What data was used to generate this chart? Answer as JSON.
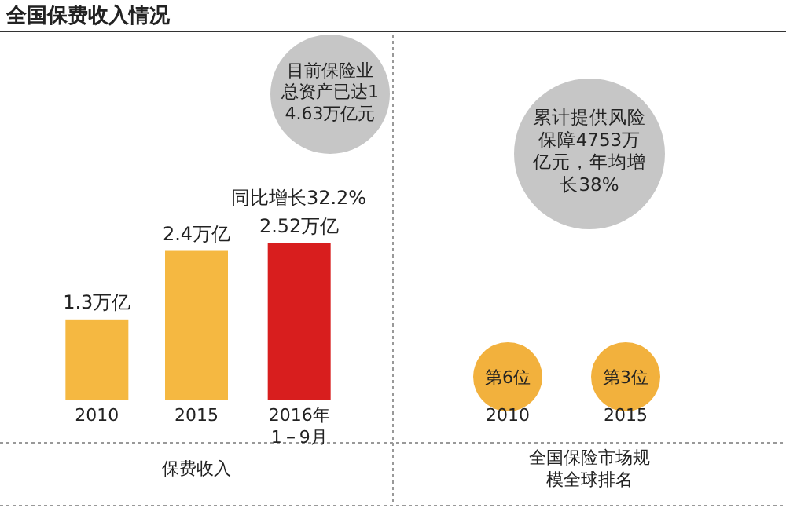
{
  "chart_data": [
    {
      "type": "bar",
      "title": "全国保费收入情况",
      "categories": [
        "2010",
        "2015",
        "2016年\n1－9月"
      ],
      "values": [
        1.3,
        2.4,
        2.52
      ],
      "colors": [
        "#f5b841",
        "#f5b841",
        "#d81e1e"
      ],
      "value_labels": [
        "1.3万亿",
        "2.4万亿",
        "2.52万亿"
      ],
      "xlabel": "保费收入",
      "annotations": [
        "目前保险业总资产已达14.63万亿元",
        "同比增长32.2%"
      ]
    },
    {
      "type": "other",
      "categories": [
        "2010",
        "2015"
      ],
      "colors": [
        "#f2b13d",
        "#f2b13d"
      ],
      "value_labels": [
        "第6位",
        "第3位"
      ],
      "xlabel": "全国保险市场规模全球排名",
      "annotations": [
        "累计提供风险保障4753万亿元，年均增长38%"
      ]
    }
  ]
}
